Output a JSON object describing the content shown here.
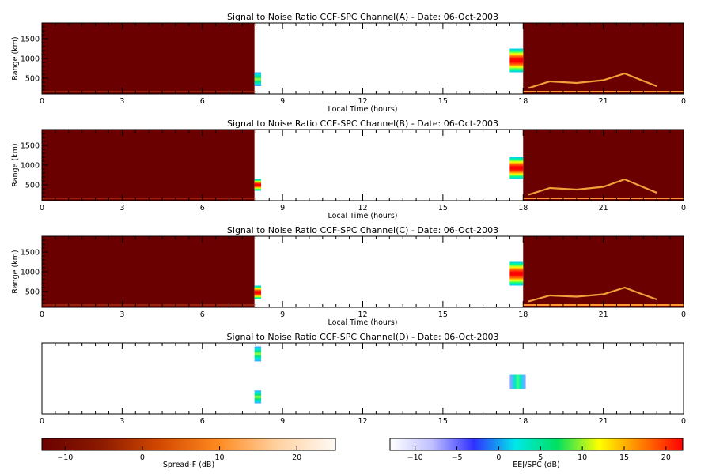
{
  "chart_data": [
    {
      "type": "heatmap",
      "title": "Signal to Noise Ratio CCF-SPC Channel(A) - Date: 06-Oct-2003",
      "xlabel": "Local Time (hours)",
      "ylabel": "Range (km)",
      "xlim": [
        0,
        24
      ],
      "ylim": [
        100,
        1900
      ],
      "xticks": [
        "0",
        "3",
        "6",
        "9",
        "12",
        "15",
        "18",
        "21",
        "0"
      ],
      "yticks": [
        500,
        1000,
        1500
      ],
      "regions": [
        {
          "kind": "spreadf_background",
          "x0": 0,
          "x1": 7.95,
          "y0": 100,
          "y1": 1900
        },
        {
          "kind": "spreadf_background",
          "x0": 18.0,
          "x1": 24,
          "y0": 100,
          "y1": 1900
        },
        {
          "kind": "eej_patch",
          "x0": 7.95,
          "x1": 8.2,
          "y0": 300,
          "y1": 650,
          "level_db": 10
        },
        {
          "kind": "eej_patch",
          "x0": 17.5,
          "x1": 18.0,
          "y0": 650,
          "y1": 1250,
          "level_db": 20
        }
      ],
      "echo_trace": [
        {
          "t": 18.2,
          "r": 250
        },
        {
          "t": 19.0,
          "r": 420
        },
        {
          "t": 20.0,
          "r": 380
        },
        {
          "t": 21.0,
          "r": 450
        },
        {
          "t": 21.8,
          "r": 620
        },
        {
          "t": 22.5,
          "r": 430
        },
        {
          "t": 23.0,
          "r": 300
        }
      ]
    },
    {
      "type": "heatmap",
      "title": "Signal to Noise Ratio CCF-SPC Channel(B) - Date: 06-Oct-2003",
      "xlabel": "Local Time (hours)",
      "ylabel": "Range (km)",
      "xlim": [
        0,
        24
      ],
      "ylim": [
        100,
        1900
      ],
      "xticks": [
        "0",
        "3",
        "6",
        "9",
        "12",
        "15",
        "18",
        "21",
        "0"
      ],
      "yticks": [
        500,
        1000,
        1500
      ],
      "regions": [
        {
          "kind": "spreadf_background",
          "x0": 0,
          "x1": 7.95,
          "y0": 100,
          "y1": 1900
        },
        {
          "kind": "spreadf_background",
          "x0": 18.0,
          "x1": 24,
          "y0": 100,
          "y1": 1900
        },
        {
          "kind": "eej_patch",
          "x0": 7.95,
          "x1": 8.2,
          "y0": 350,
          "y1": 650,
          "level_db": 20
        },
        {
          "kind": "eej_patch",
          "x0": 17.5,
          "x1": 18.0,
          "y0": 650,
          "y1": 1200,
          "level_db": 20
        }
      ],
      "echo_trace": [
        {
          "t": 18.2,
          "r": 250
        },
        {
          "t": 19.0,
          "r": 420
        },
        {
          "t": 20.0,
          "r": 380
        },
        {
          "t": 21.0,
          "r": 450
        },
        {
          "t": 21.8,
          "r": 640
        },
        {
          "t": 22.5,
          "r": 440
        },
        {
          "t": 23.0,
          "r": 300
        }
      ]
    },
    {
      "type": "heatmap",
      "title": "Signal to Noise Ratio CCF-SPC Channel(C) - Date: 06-Oct-2003",
      "xlabel": "Local Time (hours)",
      "ylabel": "Range (km)",
      "xlim": [
        0,
        24
      ],
      "ylim": [
        100,
        1900
      ],
      "xticks": [
        "0",
        "3",
        "6",
        "9",
        "12",
        "15",
        "18",
        "21",
        "0"
      ],
      "yticks": [
        500,
        1000,
        1500
      ],
      "regions": [
        {
          "kind": "spreadf_background",
          "x0": 0,
          "x1": 7.95,
          "y0": 100,
          "y1": 1900
        },
        {
          "kind": "spreadf_background",
          "x0": 18.0,
          "x1": 24,
          "y0": 100,
          "y1": 1900
        },
        {
          "kind": "eej_patch",
          "x0": 7.95,
          "x1": 8.2,
          "y0": 300,
          "y1": 650,
          "level_db": 20
        },
        {
          "kind": "eej_patch",
          "x0": 17.5,
          "x1": 18.0,
          "y0": 650,
          "y1": 1250,
          "level_db": 20
        }
      ],
      "echo_trace": [
        {
          "t": 18.2,
          "r": 250
        },
        {
          "t": 19.0,
          "r": 400
        },
        {
          "t": 20.0,
          "r": 370
        },
        {
          "t": 21.0,
          "r": 430
        },
        {
          "t": 21.8,
          "r": 600
        },
        {
          "t": 22.5,
          "r": 420
        },
        {
          "t": 23.0,
          "r": 300
        }
      ]
    },
    {
      "type": "heatmap",
      "title": "Signal to Noise Ratio CCF-SPC Channel(D) - Date: 06-Oct-2003",
      "xlabel": "",
      "ylabel": "",
      "xlim": [
        0,
        24
      ],
      "ylim": [
        0,
        1
      ],
      "xticks": [
        "0",
        "3",
        "6",
        "9",
        "12",
        "15",
        "18",
        "21",
        "0"
      ],
      "yticks": [],
      "regions": [
        {
          "kind": "eej_patch",
          "x0": 7.95,
          "x1": 8.2,
          "y0": 0.74,
          "y1": 0.95,
          "level_db": 8
        },
        {
          "kind": "eej_patch",
          "x0": 7.95,
          "x1": 8.2,
          "y0": 0.15,
          "y1": 0.33,
          "level_db": 8
        },
        {
          "kind": "eej_patch",
          "x0": 17.5,
          "x1": 18.1,
          "y0": 0.35,
          "y1": 0.55,
          "level_db": 5
        }
      ],
      "echo_trace": []
    }
  ],
  "colorbars": [
    {
      "label": "Spread-F (dB)",
      "range": [
        -13,
        25
      ],
      "ticks": [
        -10,
        0,
        10,
        20
      ],
      "colors": [
        "#6b0000",
        "#8b1a00",
        "#d24800",
        "#ff8a20",
        "#ffd1a0",
        "#fffaf4"
      ]
    },
    {
      "label": "EEJ/SPC (dB)",
      "range": [
        -13,
        22
      ],
      "ticks": [
        -10,
        -5,
        0,
        5,
        10,
        15,
        20
      ],
      "colors": [
        "#ffffff",
        "#c0c0ff",
        "#3030ff",
        "#00e8e8",
        "#00e060",
        "#ffff00",
        "#ff8000",
        "#ff0000"
      ]
    }
  ]
}
